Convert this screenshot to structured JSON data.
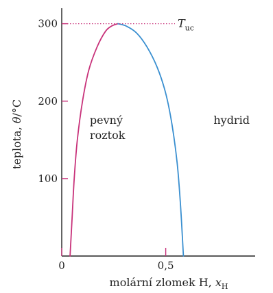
{
  "chart_data": {
    "type": "line",
    "title": "",
    "xlabel": {
      "main": "molární zlomek H, ",
      "var": "x",
      "sub": "H"
    },
    "ylabel": {
      "main": "teplota, ",
      "var": "θ",
      "unit": "/°C"
    },
    "xlim": [
      0,
      0.93
    ],
    "ylim": [
      0,
      320
    ],
    "x_ticks": [
      {
        "value": 0,
        "label": "0"
      },
      {
        "value": 0.5,
        "label": "0,5"
      }
    ],
    "y_ticks": [
      {
        "value": 100,
        "label": "100"
      },
      {
        "value": 200,
        "label": "200"
      },
      {
        "value": 300,
        "label": "300"
      }
    ],
    "critical_point": {
      "x": 0.27,
      "y": 300,
      "label_var": "T",
      "label_sub": "uc"
    },
    "series": [
      {
        "name": "pevný roztok",
        "color": "#c8327a",
        "points": [
          [
            0.04,
            0
          ],
          [
            0.05,
            50
          ],
          [
            0.06,
            100
          ],
          [
            0.075,
            150
          ],
          [
            0.1,
            200
          ],
          [
            0.13,
            240
          ],
          [
            0.17,
            270
          ],
          [
            0.21,
            290
          ],
          [
            0.24,
            297
          ],
          [
            0.27,
            300
          ]
        ]
      },
      {
        "name": "hydrid",
        "color": "#3a8fd0",
        "points": [
          [
            0.27,
            300
          ],
          [
            0.31,
            297
          ],
          [
            0.36,
            288
          ],
          [
            0.41,
            270
          ],
          [
            0.46,
            243
          ],
          [
            0.5,
            210
          ],
          [
            0.53,
            170
          ],
          [
            0.555,
            120
          ],
          [
            0.57,
            70
          ],
          [
            0.58,
            25
          ],
          [
            0.585,
            0
          ]
        ]
      }
    ],
    "annotations": [
      {
        "lines": [
          "pevný",
          "roztok"
        ],
        "x": 0.135,
        "y": 175
      },
      {
        "lines": [
          "hydrid"
        ],
        "x": 0.73,
        "y": 175
      }
    ]
  }
}
